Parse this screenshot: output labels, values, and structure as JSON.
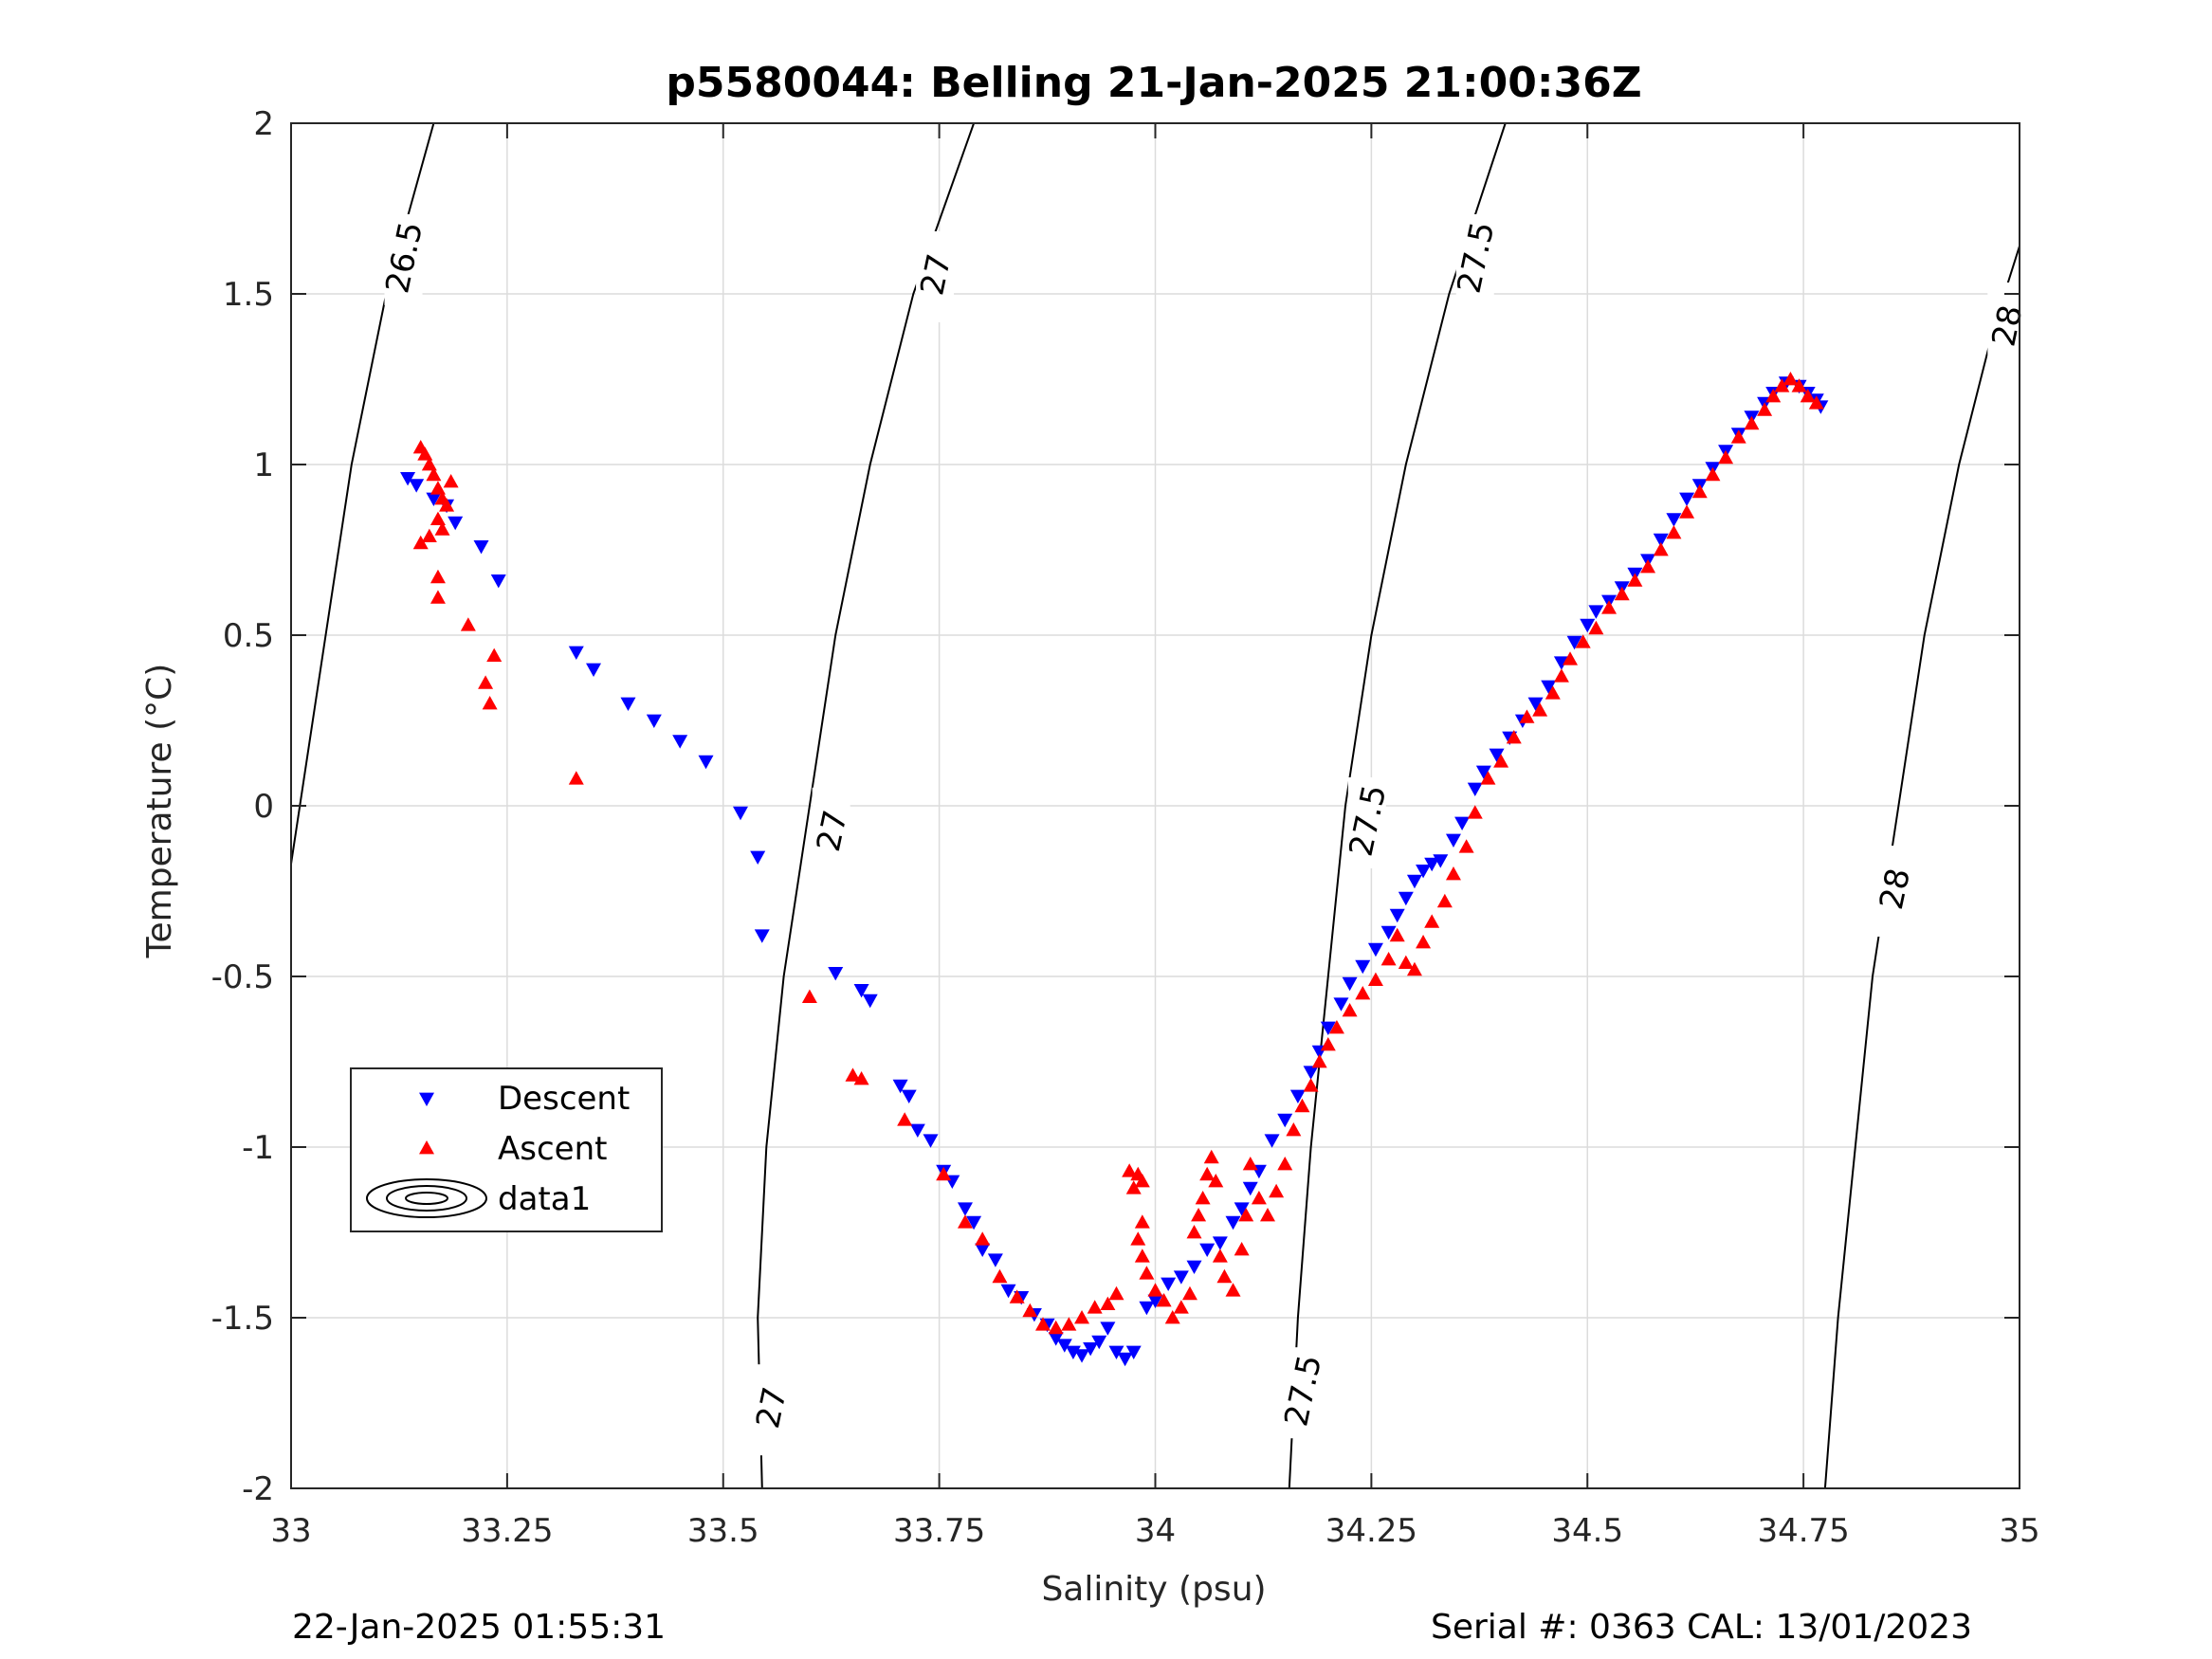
{
  "title": "p5580044: Belling 21-Jan-2025 21:00:36Z",
  "footer": {
    "left": "22-Jan-2025 01:55:31",
    "right": "Serial #: 0363  CAL: 13/01/2023"
  },
  "colors": {
    "descent": "#0000ff",
    "ascent": "#ff0000",
    "contour": "#000000",
    "grid": "#dcdcdc"
  },
  "chart_data": {
    "type": "scatter",
    "title": "p5580044: Belling 21-Jan-2025 21:00:36Z",
    "xlabel": "Salinity (psu)",
    "ylabel": "Temperature (°C)",
    "xlim": [
      33,
      35
    ],
    "ylim": [
      -2,
      2
    ],
    "xticks": [
      33,
      33.25,
      33.5,
      33.75,
      34,
      34.25,
      34.5,
      34.75,
      35
    ],
    "xtick_labels": [
      "33",
      "33.25",
      "33.5",
      "33.75",
      "34",
      "34.25",
      "34.5",
      "34.75",
      "35"
    ],
    "yticks": [
      2,
      1.5,
      1,
      0.5,
      0,
      -0.5,
      -1,
      -1.5,
      -2
    ],
    "ytick_labels": [
      "2",
      "1.5",
      "1",
      "0.5",
      "0",
      "-0.5",
      "-1",
      "-1.5",
      "-2"
    ],
    "grid": true,
    "legend": {
      "location": "middle-left",
      "entries": [
        {
          "label": "Descent",
          "marker": "triangle-down"
        },
        {
          "label": "Ascent",
          "marker": "triangle-up"
        },
        {
          "label": "data1",
          "marker": "contour"
        }
      ]
    },
    "contours": [
      {
        "level": "26.5",
        "points": [
          [
            33.165,
            2.0
          ],
          [
            33.11,
            1.5
          ],
          [
            33.07,
            1.0
          ],
          [
            33.04,
            0.5
          ],
          [
            33.0,
            -0.17
          ]
        ],
        "labels": [
          {
            "x": 33.13,
            "y": 1.6,
            "text": "26.5"
          }
        ]
      },
      {
        "level": "27",
        "points": [
          [
            33.79,
            2.0
          ],
          [
            33.72,
            1.5
          ],
          [
            33.67,
            1.0
          ],
          [
            33.63,
            0.5
          ],
          [
            33.6,
            0.0
          ],
          [
            33.57,
            -0.5
          ],
          [
            33.55,
            -1.0
          ],
          [
            33.54,
            -1.5
          ],
          [
            33.545,
            -2.0
          ]
        ],
        "labels": [
          {
            "x": 33.745,
            "y": 1.55,
            "text": "27"
          },
          {
            "x": 33.625,
            "y": -0.08,
            "text": "27"
          },
          {
            "x": 33.555,
            "y": -1.77,
            "text": "27"
          }
        ]
      },
      {
        "level": "27.5",
        "points": [
          [
            34.405,
            2.0
          ],
          [
            34.34,
            1.5
          ],
          [
            34.29,
            1.0
          ],
          [
            34.25,
            0.5
          ],
          [
            34.22,
            0.0
          ],
          [
            34.2,
            -0.5
          ],
          [
            34.18,
            -1.0
          ],
          [
            34.165,
            -1.5
          ],
          [
            34.155,
            -2.0
          ]
        ],
        "labels": [
          {
            "x": 34.37,
            "y": 1.6,
            "text": "27.5"
          },
          {
            "x": 34.245,
            "y": -0.05,
            "text": "27.5"
          },
          {
            "x": 34.17,
            "y": -1.72,
            "text": "27.5"
          }
        ]
      },
      {
        "level": "28",
        "points": [
          [
            35.0,
            1.64
          ],
          [
            34.97,
            1.4
          ],
          [
            34.93,
            1.0
          ],
          [
            34.89,
            0.5
          ],
          [
            34.86,
            0.0
          ],
          [
            34.83,
            -0.5
          ],
          [
            34.81,
            -1.0
          ],
          [
            34.79,
            -1.5
          ],
          [
            34.775,
            -2.0
          ]
        ],
        "labels": [
          {
            "x": 34.985,
            "y": 1.4,
            "text": "28"
          },
          {
            "x": 34.855,
            "y": -0.25,
            "text": "28"
          }
        ]
      }
    ],
    "series": [
      {
        "name": "Descent",
        "marker": "triangle-down",
        "points": [
          [
            33.135,
            0.96
          ],
          [
            33.145,
            0.94
          ],
          [
            33.165,
            0.9
          ],
          [
            33.18,
            0.88
          ],
          [
            33.19,
            0.83
          ],
          [
            33.22,
            0.76
          ],
          [
            33.24,
            0.66
          ],
          [
            33.33,
            0.45
          ],
          [
            33.35,
            0.4
          ],
          [
            33.39,
            0.3
          ],
          [
            33.42,
            0.25
          ],
          [
            33.45,
            0.19
          ],
          [
            33.48,
            0.13
          ],
          [
            33.52,
            -0.02
          ],
          [
            33.54,
            -0.15
          ],
          [
            33.545,
            -0.38
          ],
          [
            33.63,
            -0.49
          ],
          [
            33.66,
            -0.54
          ],
          [
            33.67,
            -0.57
          ],
          [
            33.705,
            -0.82
          ],
          [
            33.715,
            -0.85
          ],
          [
            33.725,
            -0.95
          ],
          [
            33.74,
            -0.98
          ],
          [
            33.755,
            -1.07
          ],
          [
            33.765,
            -1.1
          ],
          [
            33.78,
            -1.18
          ],
          [
            33.79,
            -1.22
          ],
          [
            33.8,
            -1.3
          ],
          [
            33.815,
            -1.33
          ],
          [
            33.83,
            -1.42
          ],
          [
            33.845,
            -1.44
          ],
          [
            33.86,
            -1.49
          ],
          [
            33.875,
            -1.52
          ],
          [
            33.885,
            -1.56
          ],
          [
            33.895,
            -1.58
          ],
          [
            33.905,
            -1.6
          ],
          [
            33.915,
            -1.61
          ],
          [
            33.925,
            -1.59
          ],
          [
            33.935,
            -1.57
          ],
          [
            33.945,
            -1.53
          ],
          [
            33.955,
            -1.6
          ],
          [
            33.965,
            -1.62
          ],
          [
            33.975,
            -1.6
          ],
          [
            33.99,
            -1.47
          ],
          [
            34.0,
            -1.45
          ],
          [
            34.015,
            -1.4
          ],
          [
            34.03,
            -1.38
          ],
          [
            34.045,
            -1.35
          ],
          [
            34.06,
            -1.3
          ],
          [
            34.075,
            -1.28
          ],
          [
            34.09,
            -1.22
          ],
          [
            34.1,
            -1.18
          ],
          [
            34.11,
            -1.12
          ],
          [
            34.12,
            -1.07
          ],
          [
            34.135,
            -0.98
          ],
          [
            34.15,
            -0.92
          ],
          [
            34.165,
            -0.85
          ],
          [
            34.18,
            -0.78
          ],
          [
            34.19,
            -0.72
          ],
          [
            34.2,
            -0.65
          ],
          [
            34.215,
            -0.58
          ],
          [
            34.225,
            -0.52
          ],
          [
            34.24,
            -0.47
          ],
          [
            34.255,
            -0.42
          ],
          [
            34.27,
            -0.37
          ],
          [
            34.28,
            -0.32
          ],
          [
            34.29,
            -0.27
          ],
          [
            34.3,
            -0.22
          ],
          [
            34.31,
            -0.19
          ],
          [
            34.32,
            -0.17
          ],
          [
            34.33,
            -0.16
          ],
          [
            34.345,
            -0.1
          ],
          [
            34.355,
            -0.05
          ],
          [
            34.37,
            0.05
          ],
          [
            34.38,
            0.1
          ],
          [
            34.395,
            0.15
          ],
          [
            34.41,
            0.2
          ],
          [
            34.425,
            0.25
          ],
          [
            34.44,
            0.3
          ],
          [
            34.455,
            0.35
          ],
          [
            34.47,
            0.42
          ],
          [
            34.485,
            0.48
          ],
          [
            34.5,
            0.53
          ],
          [
            34.51,
            0.57
          ],
          [
            34.525,
            0.6
          ],
          [
            34.54,
            0.64
          ],
          [
            34.555,
            0.68
          ],
          [
            34.57,
            0.72
          ],
          [
            34.585,
            0.78
          ],
          [
            34.6,
            0.84
          ],
          [
            34.615,
            0.9
          ],
          [
            34.63,
            0.94
          ],
          [
            34.645,
            0.99
          ],
          [
            34.66,
            1.04
          ],
          [
            34.675,
            1.09
          ],
          [
            34.69,
            1.14
          ],
          [
            34.705,
            1.18
          ],
          [
            34.715,
            1.21
          ],
          [
            34.73,
            1.24
          ],
          [
            34.745,
            1.23
          ],
          [
            34.755,
            1.21
          ],
          [
            34.765,
            1.19
          ],
          [
            34.77,
            1.17
          ]
        ]
      },
      {
        "name": "Ascent",
        "marker": "triangle-up",
        "points": [
          [
            33.15,
            1.05
          ],
          [
            33.155,
            1.03
          ],
          [
            33.16,
            1.0
          ],
          [
            33.165,
            0.97
          ],
          [
            33.17,
            0.93
          ],
          [
            33.175,
            0.9
          ],
          [
            33.18,
            0.88
          ],
          [
            33.185,
            0.95
          ],
          [
            33.17,
            0.84
          ],
          [
            33.175,
            0.81
          ],
          [
            33.15,
            0.77
          ],
          [
            33.16,
            0.79
          ],
          [
            33.17,
            0.67
          ],
          [
            33.17,
            0.61
          ],
          [
            33.205,
            0.53
          ],
          [
            33.235,
            0.44
          ],
          [
            33.225,
            0.36
          ],
          [
            33.23,
            0.3
          ],
          [
            33.33,
            0.08
          ],
          [
            33.6,
            -0.56
          ],
          [
            33.65,
            -0.79
          ],
          [
            33.66,
            -0.8
          ],
          [
            33.71,
            -0.92
          ],
          [
            33.755,
            -1.08
          ],
          [
            33.78,
            -1.22
          ],
          [
            33.8,
            -1.27
          ],
          [
            33.82,
            -1.38
          ],
          [
            33.84,
            -1.44
          ],
          [
            33.855,
            -1.48
          ],
          [
            33.87,
            -1.52
          ],
          [
            33.885,
            -1.53
          ],
          [
            33.9,
            -1.52
          ],
          [
            33.915,
            -1.5
          ],
          [
            33.93,
            -1.47
          ],
          [
            33.945,
            -1.46
          ],
          [
            33.955,
            -1.43
          ],
          [
            33.97,
            -1.07
          ],
          [
            33.98,
            -1.08
          ],
          [
            33.985,
            -1.1
          ],
          [
            33.975,
            -1.12
          ],
          [
            33.985,
            -1.22
          ],
          [
            33.98,
            -1.27
          ],
          [
            33.985,
            -1.32
          ],
          [
            33.99,
            -1.37
          ],
          [
            34.0,
            -1.42
          ],
          [
            34.01,
            -1.45
          ],
          [
            34.02,
            -1.5
          ],
          [
            34.03,
            -1.47
          ],
          [
            34.04,
            -1.43
          ],
          [
            34.045,
            -1.25
          ],
          [
            34.05,
            -1.2
          ],
          [
            34.055,
            -1.15
          ],
          [
            34.06,
            -1.08
          ],
          [
            34.065,
            -1.03
          ],
          [
            34.07,
            -1.1
          ],
          [
            34.075,
            -1.32
          ],
          [
            34.08,
            -1.38
          ],
          [
            34.09,
            -1.42
          ],
          [
            34.1,
            -1.3
          ],
          [
            34.105,
            -1.2
          ],
          [
            34.11,
            -1.05
          ],
          [
            34.12,
            -1.15
          ],
          [
            34.13,
            -1.2
          ],
          [
            34.14,
            -1.13
          ],
          [
            34.15,
            -1.05
          ],
          [
            34.16,
            -0.95
          ],
          [
            34.17,
            -0.88
          ],
          [
            34.18,
            -0.82
          ],
          [
            34.19,
            -0.75
          ],
          [
            34.2,
            -0.7
          ],
          [
            34.21,
            -0.65
          ],
          [
            34.225,
            -0.6
          ],
          [
            34.24,
            -0.55
          ],
          [
            34.255,
            -0.51
          ],
          [
            34.27,
            -0.45
          ],
          [
            34.28,
            -0.38
          ],
          [
            34.29,
            -0.46
          ],
          [
            34.3,
            -0.48
          ],
          [
            34.31,
            -0.4
          ],
          [
            34.32,
            -0.34
          ],
          [
            34.335,
            -0.28
          ],
          [
            34.345,
            -0.2
          ],
          [
            34.36,
            -0.12
          ],
          [
            34.37,
            -0.02
          ],
          [
            34.385,
            0.08
          ],
          [
            34.4,
            0.13
          ],
          [
            34.415,
            0.2
          ],
          [
            34.43,
            0.26
          ],
          [
            34.445,
            0.28
          ],
          [
            34.46,
            0.33
          ],
          [
            34.47,
            0.38
          ],
          [
            34.48,
            0.43
          ],
          [
            34.495,
            0.48
          ],
          [
            34.51,
            0.52
          ],
          [
            34.525,
            0.58
          ],
          [
            34.54,
            0.62
          ],
          [
            34.555,
            0.66
          ],
          [
            34.57,
            0.7
          ],
          [
            34.585,
            0.75
          ],
          [
            34.6,
            0.8
          ],
          [
            34.615,
            0.86
          ],
          [
            34.63,
            0.92
          ],
          [
            34.645,
            0.97
          ],
          [
            34.66,
            1.02
          ],
          [
            34.675,
            1.08
          ],
          [
            34.69,
            1.12
          ],
          [
            34.705,
            1.16
          ],
          [
            34.715,
            1.2
          ],
          [
            34.725,
            1.23
          ],
          [
            34.735,
            1.25
          ],
          [
            34.745,
            1.23
          ],
          [
            34.755,
            1.2
          ],
          [
            34.765,
            1.18
          ]
        ]
      }
    ]
  }
}
